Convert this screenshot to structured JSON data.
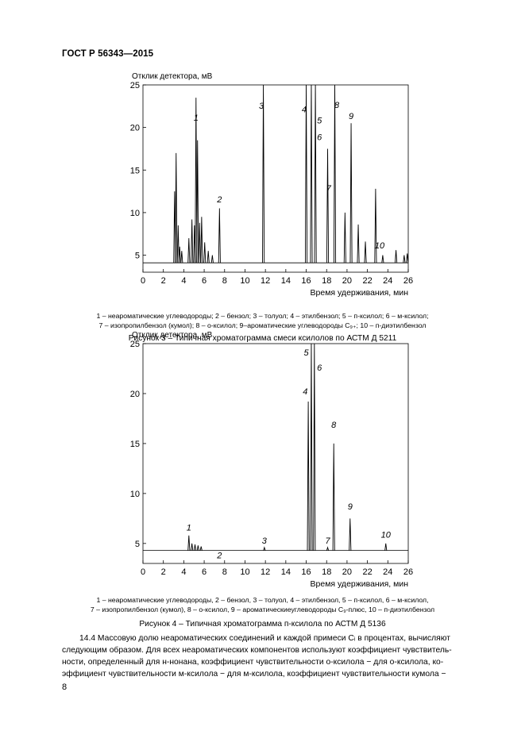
{
  "header": {
    "title": "ГОСТ Р 56343—2015"
  },
  "figure3": {
    "ylabel": "Отклик детектора, мВ",
    "xlabel": "Время удерживания, мин",
    "caption_line1": "1 – неароматические углеводороды; 2 – бензол; 3 – толуол; 4 – этилбензол; 5 – п-ксилол; 6 – м-ксилол;",
    "caption_line2": "7 – изопропилбензол (кумол); 8 – о-ксилол; 9–ароматические углеводороды С₉₊; 10 – п-диэтилбензол",
    "title": "Рисунок 3 – Типичная хроматограмма смеси ксилолов по АСТМ Д 5211"
  },
  "figure4": {
    "ylabel": "Отклик детектора, мВ",
    "xlabel": "Время удерживания, мин",
    "caption_line1": "1 – неароматические углеводороды, 2 – бензол, 3 – толуол, 4 – этилбензол, 5 – п-ксилол, 6 – м-ксилол,",
    "caption_line2": "7 – изопропилбензол (кумол), 8 – о-ксилол, 9 – ароматическиеуглеводороды С₉-плюс, 10 – п-диэтилбензол",
    "title": "Рисунок 4 – Типичная хроматограмма п-ксилола по АСТМ Д 5136"
  },
  "paragraph": {
    "line1": "14.4 Массовую долю неароматических соединений и каждой примеси Cᵢ в процентах, вычисляют",
    "line2": "следующим образом. Для всех неароматических компонентов используют коэффициент чувствитель-",
    "line3": "ности, определенный для н-нонана, коэффициент чувствительности о-ксилола − для о-ксилола, ко-",
    "line4": "эффициент чувствительности м-ксилола − для м-ксилола, коэффициент чувствительности кумола −"
  },
  "page_number": "8",
  "chart_data": [
    {
      "type": "line",
      "title": "",
      "xlabel": "Время удерживания, мин",
      "ylabel": "Отклик детектора, мВ",
      "xlim": [
        0,
        26
      ],
      "ylim": [
        3,
        25
      ],
      "x_ticks": [
        0,
        2,
        4,
        6,
        8,
        10,
        12,
        14,
        16,
        18,
        20,
        22,
        24,
        26
      ],
      "y_ticks": [
        5,
        10,
        15,
        20,
        25
      ],
      "baseline": 4.1,
      "peaks": [
        {
          "x": 3.1,
          "y": 12.5
        },
        {
          "x": 3.25,
          "y": 17.0
        },
        {
          "x": 3.45,
          "y": 8.5
        },
        {
          "x": 3.6,
          "y": 6.0
        },
        {
          "x": 3.8,
          "y": 5.5
        },
        {
          "x": 4.5,
          "y": 7.0
        },
        {
          "x": 4.8,
          "y": 9.2
        },
        {
          "x": 5.05,
          "y": 8.5
        },
        {
          "x": 5.2,
          "y": 23.5
        },
        {
          "x": 5.35,
          "y": 18.5
        },
        {
          "x": 5.55,
          "y": 8.8
        },
        {
          "x": 5.75,
          "y": 9.5
        },
        {
          "x": 6.05,
          "y": 6.5
        },
        {
          "x": 6.4,
          "y": 5.5
        },
        {
          "x": 6.8,
          "y": 5.0
        },
        {
          "x": 7.5,
          "y": 10.5
        },
        {
          "x": 11.8,
          "y": 25
        },
        {
          "x": 16.0,
          "y": 25
        },
        {
          "x": 16.5,
          "y": 25
        },
        {
          "x": 16.9,
          "y": 25
        },
        {
          "x": 18.1,
          "y": 17.5
        },
        {
          "x": 18.8,
          "y": 25
        },
        {
          "x": 19.8,
          "y": 10.0
        },
        {
          "x": 20.4,
          "y": 20.5
        },
        {
          "x": 21.1,
          "y": 8.6
        },
        {
          "x": 21.8,
          "y": 6.6
        },
        {
          "x": 22.8,
          "y": 12.8
        },
        {
          "x": 23.5,
          "y": 5.0
        },
        {
          "x": 24.8,
          "y": 5.6
        },
        {
          "x": 25.6,
          "y": 5.0
        },
        {
          "x": 25.9,
          "y": 5.2
        }
      ],
      "peak_labels": [
        {
          "text": "1",
          "x": 5.2,
          "y": 20.8
        },
        {
          "text": "2",
          "x": 7.5,
          "y": 11.2
        },
        {
          "text": "3",
          "x": 11.6,
          "y": 22.2
        },
        {
          "text": "4",
          "x": 15.8,
          "y": 21.8
        },
        {
          "text": "5",
          "x": 17.3,
          "y": 20.5
        },
        {
          "text": "6",
          "x": 17.3,
          "y": 18.5
        },
        {
          "text": "7",
          "x": 18.2,
          "y": 12.5
        },
        {
          "text": "8",
          "x": 19.0,
          "y": 22.3
        },
        {
          "text": "9",
          "x": 20.4,
          "y": 21.0
        },
        {
          "text": "10",
          "x": 23.2,
          "y": 5.8
        }
      ]
    },
    {
      "type": "line",
      "title": "",
      "xlabel": "Время удерживания, мин",
      "ylabel": "Отклик детектора, мВ",
      "xlim": [
        0,
        26
      ],
      "ylim": [
        3,
        25
      ],
      "x_ticks": [
        0,
        2,
        4,
        6,
        8,
        10,
        12,
        14,
        16,
        18,
        20,
        22,
        24,
        26
      ],
      "y_ticks": [
        5,
        10,
        15,
        20,
        25
      ],
      "baseline": 4.3,
      "peaks": [
        {
          "x": 4.5,
          "y": 5.8
        },
        {
          "x": 4.8,
          "y": 5.0
        },
        {
          "x": 5.1,
          "y": 4.9
        },
        {
          "x": 5.4,
          "y": 4.8
        },
        {
          "x": 5.7,
          "y": 4.7
        },
        {
          "x": 11.9,
          "y": 4.6
        },
        {
          "x": 16.2,
          "y": 19.2
        },
        {
          "x": 16.5,
          "y": 25
        },
        {
          "x": 16.8,
          "y": 25
        },
        {
          "x": 18.1,
          "y": 4.6
        },
        {
          "x": 18.7,
          "y": 15.0
        },
        {
          "x": 20.3,
          "y": 7.5
        },
        {
          "x": 23.8,
          "y": 5.0
        }
      ],
      "peak_labels": [
        {
          "text": "1",
          "x": 4.5,
          "y": 6.3
        },
        {
          "text": "2",
          "x": 7.5,
          "y": 3.5
        },
        {
          "text": "3",
          "x": 11.9,
          "y": 5.0
        },
        {
          "text": "4",
          "x": 15.9,
          "y": 19.9
        },
        {
          "text": "5",
          "x": 16.0,
          "y": 23.8
        },
        {
          "text": "6",
          "x": 17.3,
          "y": 22.3
        },
        {
          "text": "7",
          "x": 18.1,
          "y": 5.0
        },
        {
          "text": "8",
          "x": 18.7,
          "y": 16.6
        },
        {
          "text": "9",
          "x": 20.3,
          "y": 8.4
        },
        {
          "text": "10",
          "x": 23.8,
          "y": 5.6
        }
      ]
    }
  ]
}
